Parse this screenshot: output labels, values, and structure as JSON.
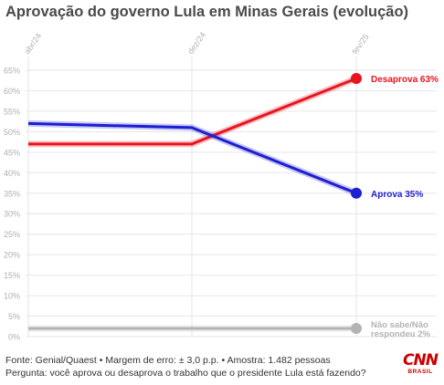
{
  "title": "Aprovação do governo Lula em Minas Gerais (evolução)",
  "footer": {
    "source": "Fonte: Genial/Quaest • Margem de erro: ± 3,0 p.p. • Amostra: 1.482 pessoas",
    "question": "Pergunta: você aprova ou desaprova o trabalho que o presidente Lula está fazendo?"
  },
  "logo": {
    "text": "CNN",
    "sub": "BRASIL"
  },
  "colors": {
    "desaprova": "#e8141e",
    "aprova": "#1e1ed2",
    "nao_sabe": "#b3b3b3",
    "grid": "#e6e6e6"
  },
  "chart_data": {
    "type": "line",
    "categories": [
      "abr/24",
      "dez/24",
      "fev/25"
    ],
    "y_ticks": [
      "0%",
      "5%",
      "10%",
      "15%",
      "20%",
      "25%",
      "30%",
      "35%",
      "40%",
      "45%",
      "50%",
      "55%",
      "60%",
      "65%"
    ],
    "ylim": [
      0,
      65
    ],
    "grid": true,
    "series": [
      {
        "name": "Desaprova",
        "values": [
          47,
          47,
          63
        ],
        "end_label": "Desaprova 63%",
        "color": "#e8141e"
      },
      {
        "name": "Aprova",
        "values": [
          52,
          51,
          35
        ],
        "end_label": "Aprova 35%",
        "color": "#1e1ed2"
      },
      {
        "name": "Não sabe/Não respondeu",
        "values": [
          2,
          2,
          2
        ],
        "end_label": [
          "Não sabe/Não",
          "respondeu 2%"
        ],
        "color": "#b3b3b3"
      }
    ]
  }
}
